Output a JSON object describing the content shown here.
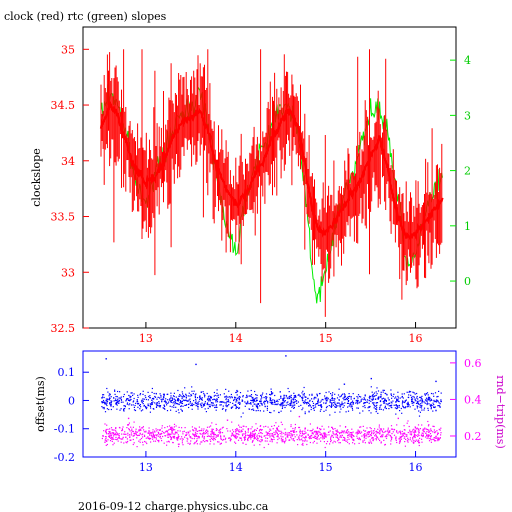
{
  "title": "clock (red) rtc (green) slopes",
  "footer": "2016-09-12 charge.physics.ubc.ca",
  "colors": {
    "red": "#ff0000",
    "green": "#00ee00",
    "blue": "#0000ff",
    "magenta": "#ff00ff",
    "frame": "#000000"
  },
  "chart_data": [
    {
      "type": "line",
      "title": "clock (red) rtc (green) slopes",
      "ylabel": "clockslope",
      "xlim": [
        12.3,
        16.45
      ],
      "ylim": [
        32.5,
        35.2
      ],
      "y2lim": [
        -0.85,
        4.6
      ],
      "xticks": [
        13,
        14,
        15,
        16
      ],
      "yticks": [
        32.5,
        33,
        33.5,
        34,
        34.5,
        35
      ],
      "y2ticks": [
        0,
        1,
        2,
        3,
        4
      ],
      "grid": false,
      "series": [
        {
          "name": "clock (red)",
          "axis": "left",
          "x": [
            12.5,
            12.6,
            12.7,
            12.8,
            12.9,
            13.0,
            13.1,
            13.2,
            13.3,
            13.4,
            13.5,
            13.6,
            13.7,
            13.8,
            13.9,
            14.0,
            14.1,
            14.2,
            14.3,
            14.4,
            14.5,
            14.6,
            14.7,
            14.8,
            14.9,
            15.0,
            15.1,
            15.2,
            15.3,
            15.4,
            15.5,
            15.6,
            15.7,
            15.8,
            15.9,
            16.0,
            16.1,
            16.2,
            16.3
          ],
          "values": [
            34.3,
            34.5,
            34.4,
            34.1,
            33.9,
            33.8,
            33.85,
            34.0,
            34.2,
            34.35,
            34.4,
            34.45,
            34.25,
            33.9,
            33.75,
            33.6,
            33.7,
            33.85,
            34.0,
            34.2,
            34.35,
            34.45,
            34.3,
            33.8,
            33.4,
            33.35,
            33.45,
            33.6,
            33.7,
            33.85,
            34.05,
            34.2,
            33.9,
            33.5,
            33.3,
            33.35,
            33.45,
            33.55,
            33.65
          ]
        },
        {
          "name": "rtc (green)",
          "axis": "right",
          "x": [
            12.5,
            12.6,
            12.7,
            12.8,
            12.9,
            13.0,
            13.1,
            13.2,
            13.3,
            13.4,
            13.5,
            13.6,
            13.7,
            13.8,
            13.9,
            14.0,
            14.1,
            14.2,
            14.3,
            14.4,
            14.5,
            14.6,
            14.7,
            14.8,
            14.9,
            15.0,
            15.1,
            15.2,
            15.3,
            15.4,
            15.5,
            15.6,
            15.7,
            15.8,
            15.9,
            16.0,
            16.1,
            16.2,
            16.3
          ],
          "values": [
            3.0,
            3.4,
            3.2,
            2.5,
            1.7,
            1.5,
            1.9,
            2.3,
            2.7,
            3.0,
            3.2,
            3.4,
            2.8,
            1.8,
            1.0,
            0.5,
            1.5,
            2.0,
            2.4,
            2.8,
            3.2,
            3.1,
            2.6,
            1.2,
            -0.5,
            0.2,
            1.0,
            1.6,
            2.0,
            2.5,
            3.0,
            3.1,
            2.6,
            1.5,
            0.2,
            0.5,
            1.2,
            1.6,
            1.9
          ]
        }
      ]
    },
    {
      "type": "scatter",
      "ylabel": "offset(ms)",
      "y2label": "rnd−trip(ms)",
      "xlim": [
        12.3,
        16.45
      ],
      "ylim": [
        -0.2,
        0.175
      ],
      "y2lim": [
        0.085,
        0.665
      ],
      "xticks": [
        13,
        14,
        15,
        16
      ],
      "yticks": [
        -0.2,
        -0.1,
        0,
        0.1
      ],
      "y2ticks": [
        0.2,
        0.4,
        0.6
      ],
      "grid": false,
      "series": [
        {
          "name": "offset",
          "axis": "left",
          "x_range": [
            12.5,
            16.28
          ],
          "center": 0.0,
          "spread": 0.035,
          "outliers": [
            [
              12.55,
              0.15
            ],
            [
              13.55,
              0.13
            ],
            [
              14.55,
              0.16
            ],
            [
              15.2,
              0.06
            ],
            [
              15.5,
              0.08
            ],
            [
              16.22,
              0.07
            ]
          ]
        },
        {
          "name": "rnd-trip",
          "axis": "right",
          "x_range": [
            12.5,
            16.28
          ],
          "center": 0.21,
          "spread": 0.05,
          "outliers": [
            [
              12.8,
              0.3
            ],
            [
              13.9,
              0.29
            ],
            [
              14.7,
              0.31
            ],
            [
              15.8,
              0.3
            ]
          ]
        }
      ]
    }
  ]
}
